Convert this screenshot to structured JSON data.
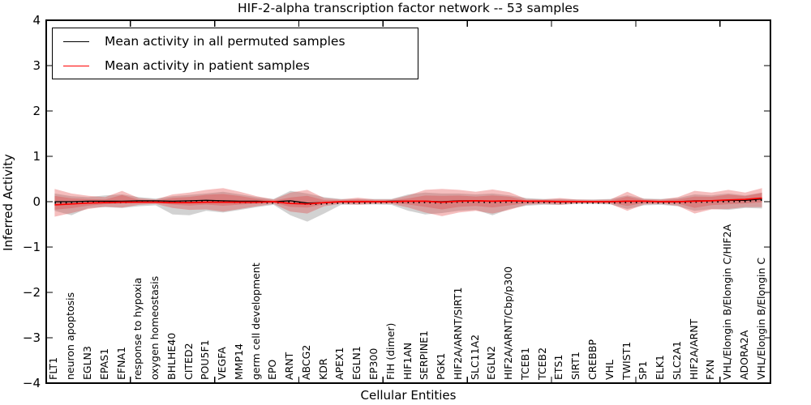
{
  "chart_data": {
    "type": "line",
    "title": "HIF-2-alpha transcription factor network -- 53 samples",
    "xlabel": "Cellular Entities",
    "ylabel": "Inferred Activity",
    "ylim": [
      -4,
      4
    ],
    "y_ticks": [
      "4",
      "3",
      "2",
      "1",
      "0",
      "−1",
      "−2",
      "−3",
      "−4"
    ],
    "grid": false,
    "legend": {
      "position": "upper left",
      "items": [
        {
          "label": "Mean activity in all permuted samples",
          "color": "#000000"
        },
        {
          "label": "Mean activity in patient samples",
          "color": "#ff0000"
        }
      ]
    },
    "categories": [
      "FLT1",
      "neuron apoptosis",
      "EGLN3",
      "EPAS1",
      "EFNA1",
      "response to hypoxia",
      "oxygen homeostasis",
      "BHLHE40",
      "CITED2",
      "POU5F1",
      "VEGFA",
      "MMP14",
      "germ cell development",
      "EPO",
      "ARNT",
      "ABCG2",
      "KDR",
      "APEX1",
      "EGLN1",
      "EP300",
      "FIH (dimer)",
      "HIF1AN",
      "SERPINE1",
      "PGK1",
      "HIF2A/ARNT/SIRT1",
      "SLC11A2",
      "EGLN2",
      "HIF2A/ARNT/Cbp/p300",
      "TCEB1",
      "TCEB2",
      "ETS1",
      "SIRT1",
      "CREBBP",
      "VHL",
      "TWIST1",
      "SP1",
      "ELK1",
      "SLC2A1",
      "HIF2A/ARNT",
      "FXN",
      "VHL/Elongin B/Elongin C/HIF2A",
      "ADORA2A",
      "VHL/Elongin B/Elongin C"
    ],
    "series": [
      {
        "name": "Permuted samples spread",
        "role": "band",
        "color": "#8a8a8a",
        "opacity": 0.38,
        "upper": [
          0.18,
          0.12,
          0.1,
          0.14,
          0.16,
          0.1,
          0.07,
          0.12,
          0.15,
          0.18,
          0.22,
          0.16,
          0.1,
          0.06,
          0.24,
          0.18,
          0.1,
          0.06,
          0.06,
          0.06,
          0.06,
          0.16,
          0.2,
          0.18,
          0.18,
          0.16,
          0.18,
          0.14,
          0.08,
          0.06,
          0.06,
          0.05,
          0.05,
          0.06,
          0.14,
          0.07,
          0.06,
          0.08,
          0.16,
          0.14,
          0.18,
          0.14,
          0.2
        ],
        "lower": [
          -0.2,
          -0.3,
          -0.14,
          -0.12,
          -0.14,
          -0.1,
          -0.08,
          -0.28,
          -0.3,
          -0.2,
          -0.24,
          -0.18,
          -0.12,
          -0.07,
          -0.3,
          -0.44,
          -0.26,
          -0.07,
          -0.06,
          -0.06,
          -0.07,
          -0.2,
          -0.28,
          -0.25,
          -0.2,
          -0.18,
          -0.3,
          -0.16,
          -0.09,
          -0.07,
          -0.07,
          -0.05,
          -0.05,
          -0.06,
          -0.16,
          -0.08,
          -0.07,
          -0.1,
          -0.2,
          -0.16,
          -0.18,
          -0.14,
          -0.15
        ]
      },
      {
        "name": "Patient samples spread",
        "role": "band",
        "color": "#e03535",
        "opacity": 0.32,
        "upper": [
          0.28,
          0.18,
          0.13,
          0.1,
          0.24,
          0.08,
          0.05,
          0.16,
          0.2,
          0.26,
          0.3,
          0.22,
          0.12,
          0.05,
          0.2,
          0.26,
          0.08,
          0.05,
          0.09,
          0.05,
          0.05,
          0.14,
          0.26,
          0.28,
          0.26,
          0.22,
          0.27,
          0.21,
          0.06,
          0.05,
          0.08,
          0.05,
          0.04,
          0.05,
          0.22,
          0.06,
          0.05,
          0.1,
          0.24,
          0.2,
          0.26,
          0.2,
          0.3
        ],
        "lower": [
          -0.33,
          -0.25,
          -0.16,
          -0.11,
          -0.13,
          -0.07,
          -0.05,
          -0.14,
          -0.18,
          -0.17,
          -0.22,
          -0.16,
          -0.1,
          -0.05,
          -0.22,
          -0.26,
          -0.1,
          -0.05,
          -0.07,
          -0.05,
          -0.05,
          -0.13,
          -0.24,
          -0.32,
          -0.24,
          -0.2,
          -0.26,
          -0.18,
          -0.07,
          -0.05,
          -0.07,
          -0.04,
          -0.04,
          -0.05,
          -0.2,
          -0.06,
          -0.05,
          -0.09,
          -0.26,
          -0.17,
          -0.16,
          -0.12,
          -0.12
        ]
      },
      {
        "name": "Mean activity in all permuted samples",
        "role": "line",
        "color": "#000000",
        "values": [
          0.0,
          0.0,
          0.01,
          0.01,
          0.01,
          0.02,
          0.02,
          0.01,
          0.02,
          0.03,
          0.02,
          0.01,
          0.01,
          0.0,
          0.02,
          -0.03,
          -0.02,
          0.0,
          0.0,
          0.0,
          0.01,
          0.01,
          0.01,
          0.0,
          0.02,
          0.02,
          0.01,
          0.02,
          0.01,
          0.01,
          0.0,
          0.0,
          0.0,
          0.0,
          0.01,
          0.01,
          0.0,
          0.0,
          0.02,
          0.02,
          0.03,
          0.03,
          0.06
        ]
      },
      {
        "name": "Mean activity in patient samples",
        "role": "line",
        "color": "#ff0000",
        "values": [
          -0.07,
          -0.05,
          -0.03,
          -0.02,
          -0.01,
          -0.01,
          -0.01,
          -0.02,
          -0.02,
          -0.01,
          -0.01,
          -0.01,
          -0.01,
          0.0,
          -0.04,
          -0.05,
          -0.02,
          0.0,
          0.0,
          0.0,
          0.0,
          0.01,
          0.01,
          -0.01,
          0.01,
          0.02,
          0.01,
          0.02,
          0.01,
          0.01,
          0.0,
          0.0,
          0.0,
          0.0,
          0.01,
          0.01,
          0.0,
          0.0,
          0.01,
          0.02,
          0.04,
          0.05,
          0.08
        ]
      }
    ]
  }
}
